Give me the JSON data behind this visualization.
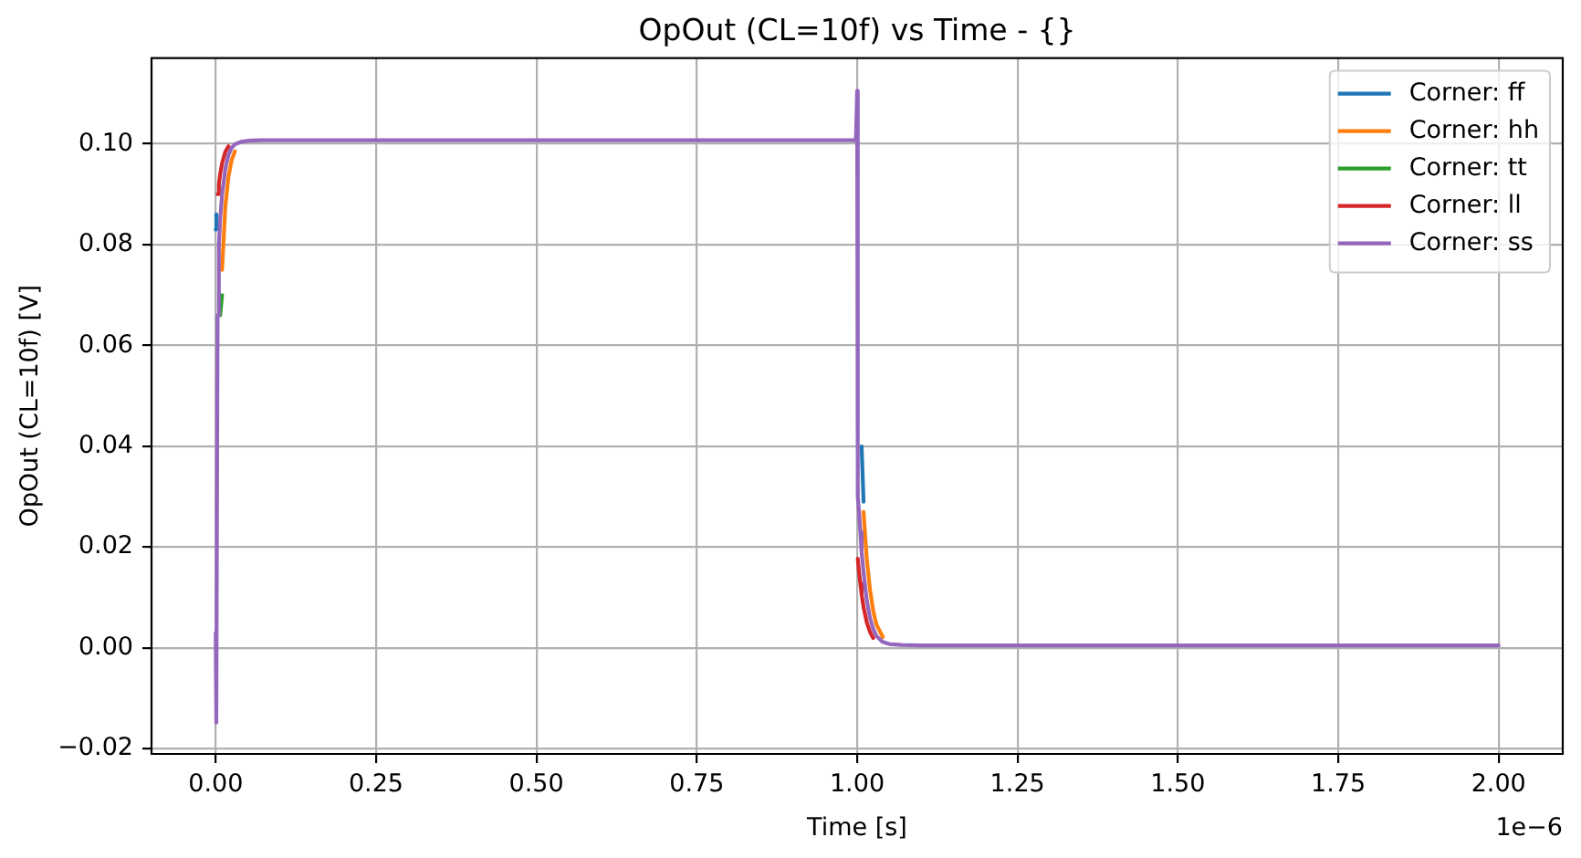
{
  "chart_data": {
    "type": "line",
    "title": "OpOut (CL=10f) vs Time - {}",
    "xlabel": "Time [s]",
    "ylabel": "OpOut (CL=10f) [V]",
    "annotations": [
      "1e−6"
    ],
    "x": [
      0,
      0.001,
      0.003,
      0.005,
      0.007,
      0.01,
      0.015,
      0.02,
      0.025,
      0.03,
      0.04,
      0.05,
      0.07,
      0.1,
      0.3,
      0.5,
      0.7,
      0.9,
      0.998,
      1.0,
      1.001,
      1.003,
      1.005,
      1.007,
      1.01,
      1.015,
      1.02,
      1.025,
      1.03,
      1.04,
      1.05,
      1.07,
      1.1,
      1.3,
      1.5,
      1.7,
      2.0
    ],
    "series": [
      {
        "name": "Corner: ff",
        "color": "#1f77b4",
        "values": [
          0.083,
          0.086,
          null,
          null,
          null,
          null,
          null,
          null,
          null,
          null,
          null,
          null,
          null,
          null,
          null,
          null,
          null,
          null,
          null,
          null,
          null,
          null,
          null,
          0.04,
          0.029,
          null,
          null,
          null,
          null,
          null,
          null,
          null,
          null,
          null,
          null,
          null,
          null
        ]
      },
      {
        "name": "Corner: hh",
        "color": "#ff7f0e",
        "values": [
          null,
          null,
          null,
          null,
          null,
          0.075,
          0.0875,
          0.0935,
          0.0968,
          0.0985,
          null,
          null,
          null,
          null,
          null,
          null,
          null,
          null,
          null,
          null,
          null,
          null,
          null,
          null,
          0.027,
          0.0177,
          0.0117,
          0.0074,
          0.0047,
          0.0022,
          null,
          null,
          null,
          null,
          null,
          null,
          null
        ]
      },
      {
        "name": "Corner: tt",
        "color": "#2ca02c",
        "values": [
          null,
          null,
          null,
          null,
          0.066,
          0.07,
          null,
          null,
          null,
          null,
          null,
          null,
          null,
          null,
          null,
          null,
          null,
          null,
          null,
          null,
          null,
          null,
          null,
          null,
          null,
          null,
          null,
          null,
          null,
          null,
          null,
          null,
          null,
          null,
          null,
          null,
          null
        ]
      },
      {
        "name": "Corner: ll",
        "color": "#d62728",
        "values": [
          null,
          null,
          0.09,
          0.092,
          0.094,
          0.0961,
          0.0984,
          0.0995,
          null,
          null,
          null,
          null,
          null,
          null,
          null,
          null,
          null,
          null,
          null,
          null,
          0.0177,
          0.015,
          0.0128,
          0.0106,
          0.0081,
          0.0051,
          0.0032,
          0.002,
          null,
          null,
          null,
          null,
          null,
          null,
          null,
          null,
          null
        ]
      },
      {
        "name": "Corner: ss",
        "color": "#9467bd",
        "values": [
          0.003,
          -0.0148,
          0.066,
          0.08,
          0.085,
          0.09,
          0.095,
          0.0978,
          0.0992,
          0.0999,
          0.1004,
          0.1006,
          0.1007,
          0.1007,
          0.1007,
          0.1007,
          0.1007,
          0.1007,
          0.1007,
          0.1105,
          0.03,
          0.027,
          0.023,
          0.019,
          0.015,
          0.0095,
          0.006,
          0.0038,
          0.0024,
          0.0012,
          0.0008,
          0.0006,
          0.0005,
          0.0005,
          0.0005,
          0.0005,
          0.0005
        ]
      }
    ],
    "xlim": [
      -0.1,
      2.1
    ],
    "xticks": [
      {
        "value": 0,
        "label": "0.00"
      },
      {
        "value": 0.25,
        "label": "0.25"
      },
      {
        "value": 0.5,
        "label": "0.50"
      },
      {
        "value": 0.75,
        "label": "0.75"
      },
      {
        "value": 1,
        "label": "1.00"
      },
      {
        "value": 1.25,
        "label": "1.25"
      },
      {
        "value": 1.5,
        "label": "1.50"
      },
      {
        "value": 1.75,
        "label": "1.75"
      },
      {
        "value": 2,
        "label": "2.00"
      }
    ],
    "ylim": [
      -0.021,
      0.117
    ],
    "yticks": [
      {
        "value": -0.02,
        "label": "−0.02"
      },
      {
        "value": 0,
        "label": "0.00"
      },
      {
        "value": 0.02,
        "label": "0.02"
      },
      {
        "value": 0.04,
        "label": "0.04"
      },
      {
        "value": 0.06,
        "label": "0.06"
      },
      {
        "value": 0.08,
        "label": "0.08"
      },
      {
        "value": 0.1,
        "label": "0.10"
      }
    ],
    "grid": true,
    "legend": "top right"
  }
}
